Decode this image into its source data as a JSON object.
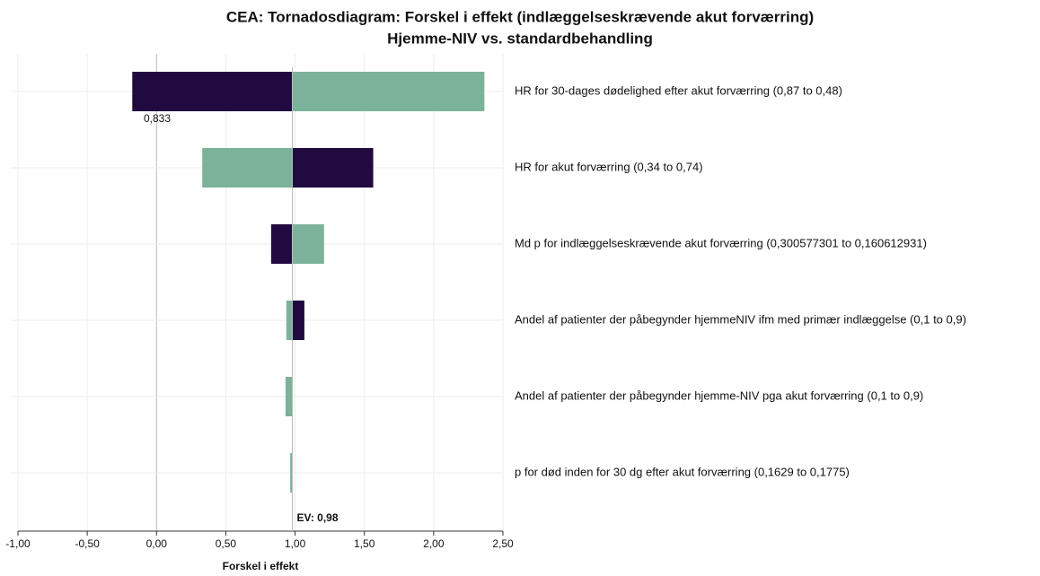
{
  "chart_data": {
    "type": "tornado",
    "title": "CEA: Tornadosdiagram: Forskel i effekt (indlæggelseskrævende akut forværring)",
    "subtitle": "Hjemme-NIV vs. standardbehandling",
    "xlabel": "Forskel i effekt",
    "annotation": "0,833",
    "ev": {
      "value": 0.98,
      "label": "EV: 0,98"
    },
    "categories": [
      "HR for 30-dages dødelighed efter akut forværring (0,87 to 0,48)",
      "HR for akut forværring (0,34 to 0,74)",
      "Md p for indlæggelseskrævende akut forværring (0,300577301 to 0,160612931)",
      "Andel af patienter der påbegynder hjemmeNIV ifm med primær indlæggelse (0,1 to 0,9)",
      "Andel af patienter der påbegynder hjemme-NIV pga akut forværring (0,1 to 0,9)",
      "p for død inden for 30 dg efter akut forværring (0,1629 to 0,1775)"
    ],
    "series": [
      {
        "color": "#200a40",
        "values": [
          -0.175,
          1.564,
          0.827,
          1.067,
          0.982,
          0.98
        ]
      },
      {
        "color": "#7ab399",
        "values": [
          2.366,
          0.33,
          1.209,
          0.937,
          0.931,
          0.965
        ]
      }
    ],
    "xlim": [
      -1,
      2.5
    ],
    "xticks": [
      {
        "value": -1,
        "label": "-1,00"
      },
      {
        "value": -0.5,
        "label": "-0,50"
      },
      {
        "value": 0,
        "label": "0,00"
      },
      {
        "value": 0.5,
        "label": "0,50"
      },
      {
        "value": 1,
        "label": "1,00"
      },
      {
        "value": 1.5,
        "label": "1,50"
      },
      {
        "value": 2,
        "label": "2,00"
      },
      {
        "value": 2.5,
        "label": "2,50"
      }
    ],
    "grid": true
  }
}
